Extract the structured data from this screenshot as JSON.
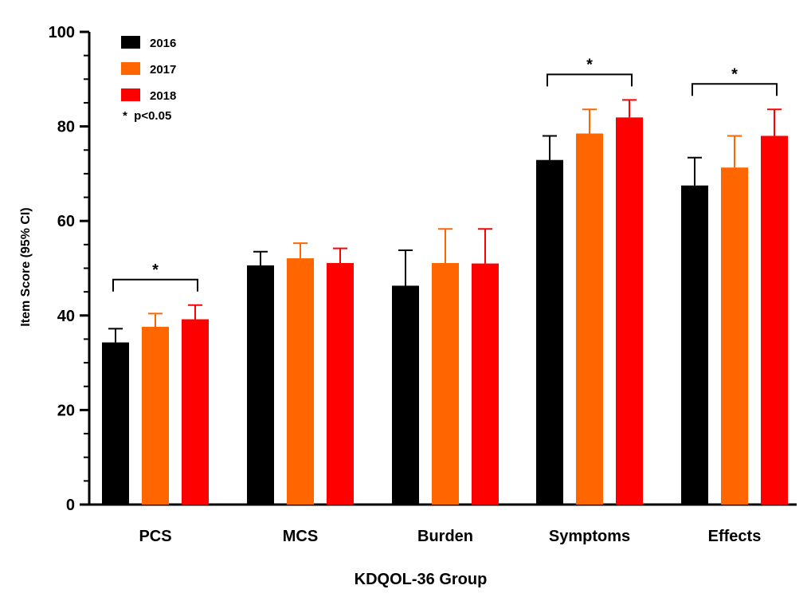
{
  "chart_data": {
    "type": "bar",
    "title": "",
    "xlabel": "KDQOL-36 Group",
    "ylabel": "Item Score (95% CI)",
    "ylim": [
      0,
      100
    ],
    "yticks": [
      0,
      20,
      40,
      60,
      80,
      100
    ],
    "categories": [
      "PCS",
      "MCS",
      "Burden",
      "Symptoms",
      "Effects"
    ],
    "series": [
      {
        "name": "2016",
        "color": "#000000",
        "values": [
          34.3,
          50.6,
          46.3,
          72.9,
          67.5
        ],
        "ci_upper": [
          37.2,
          53.5,
          53.8,
          78.0,
          73.4
        ]
      },
      {
        "name": "2017",
        "color": "#ff6600",
        "values": [
          37.6,
          52.1,
          51.1,
          78.5,
          71.3
        ],
        "ci_upper": [
          40.4,
          55.3,
          58.3,
          83.6,
          78.0
        ]
      },
      {
        "name": "2018",
        "color": "#ff0000",
        "values": [
          39.2,
          51.1,
          51.0,
          81.9,
          78.0
        ],
        "ci_upper": [
          42.2,
          54.2,
          58.3,
          85.6,
          83.6
        ]
      }
    ],
    "legend": {
      "position": "top-left",
      "note": "*  p<0.05"
    },
    "significance": [
      {
        "category": "PCS",
        "label": "*"
      },
      {
        "category": "Symptoms",
        "label": "*"
      },
      {
        "category": "Effects",
        "label": "*"
      }
    ],
    "grid": false
  }
}
